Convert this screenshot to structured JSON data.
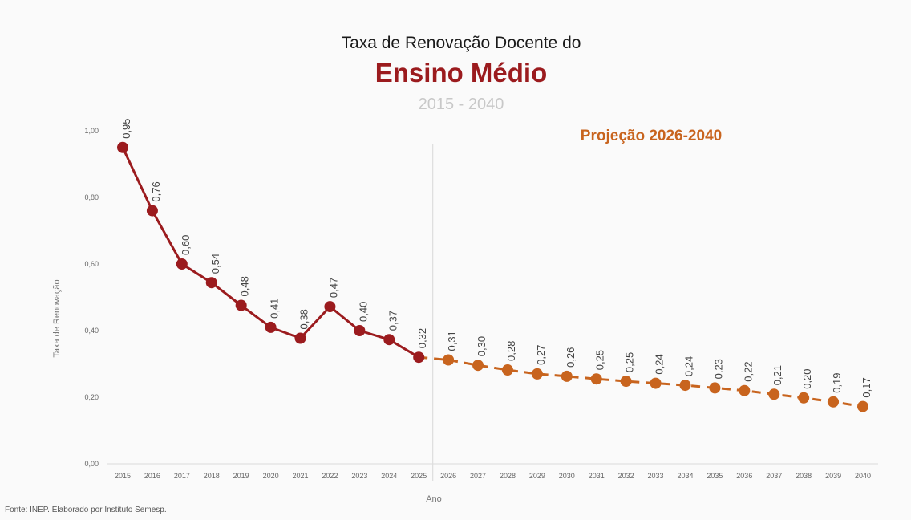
{
  "title": {
    "line1": "Taxa de Renovação Docente do",
    "line2": "Ensino Médio",
    "line3": "2015 - 2040"
  },
  "source_note": "Fonte: INEP. Elaborado por Instituto Semesp.",
  "colors": {
    "historical": "#9b1b1e",
    "projection": "#c8641e",
    "axis_text": "#666666",
    "divider": "#dddddd"
  },
  "chart_data": {
    "type": "line",
    "title": "Taxa de Renovação Docente do Ensino Médio",
    "subtitle": "2015 - 2040",
    "xlabel": "Ano",
    "ylabel": "Taxa de Renovação",
    "ylim": [
      0,
      1
    ],
    "yticks": [
      "0,00",
      "0,20",
      "0,40",
      "0,60",
      "0,80",
      "1,00"
    ],
    "grid": false,
    "annotation": "Projeção 2026-2040",
    "categories": [
      "2015",
      "2016",
      "2017",
      "2018",
      "2019",
      "2020",
      "2021",
      "2022",
      "2023",
      "2024",
      "2025",
      "2026",
      "2027",
      "2028",
      "2029",
      "2030",
      "2031",
      "2032",
      "2033",
      "2034",
      "2035",
      "2036",
      "2037",
      "2038",
      "2039",
      "2040"
    ],
    "series": [
      {
        "style": "solid",
        "x": [
          "2015",
          "2016",
          "2017",
          "2018",
          "2019",
          "2020",
          "2021",
          "2022",
          "2023",
          "2024",
          "2025"
        ],
        "values": [
          0.95,
          0.76,
          0.6,
          0.544,
          0.476,
          0.41,
          0.377,
          0.472,
          0.4,
          0.373,
          0.32
        ],
        "labels": [
          "0,95",
          "0,76",
          "0,60",
          "0,54",
          "0,48",
          "0,41",
          "0,38",
          "0,47",
          "0,40",
          "0,37",
          "0,32"
        ]
      },
      {
        "style": "dashed",
        "x": [
          "2026",
          "2027",
          "2028",
          "2029",
          "2030",
          "2031",
          "2032",
          "2033",
          "2034",
          "2035",
          "2036",
          "2037",
          "2038",
          "2039",
          "2040"
        ],
        "values": [
          0.312,
          0.296,
          0.282,
          0.27,
          0.263,
          0.255,
          0.248,
          0.242,
          0.236,
          0.228,
          0.22,
          0.209,
          0.198,
          0.186,
          0.172
        ],
        "labels": [
          "0,31",
          "0,30",
          "0,28",
          "0,27",
          "0,26",
          "0,25",
          "0,25",
          "0,24",
          "0,24",
          "0,23",
          "0,22",
          "0,21",
          "0,20",
          "0,19",
          "0,17"
        ]
      }
    ]
  }
}
